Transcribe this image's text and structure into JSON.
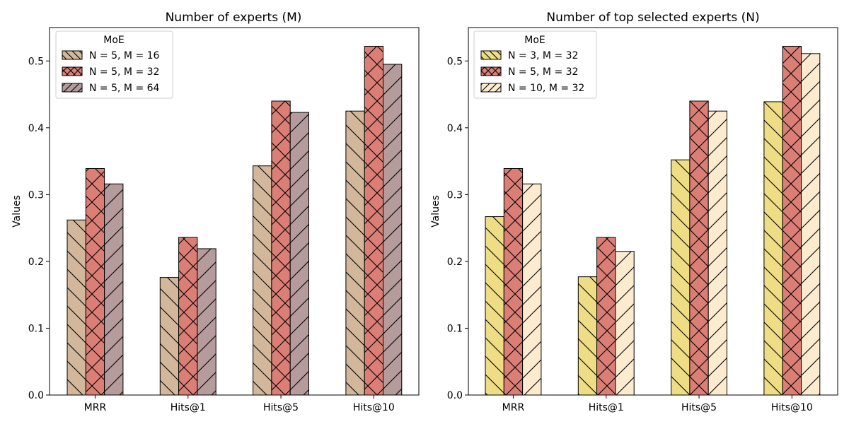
{
  "chart_data": [
    {
      "type": "bar",
      "title": "Number of experts (M)",
      "xlabel": "",
      "ylabel": "Values",
      "categories": [
        "MRR",
        "Hits@1",
        "Hits@5",
        "Hits@10"
      ],
      "ylim": [
        0,
        0.55
      ],
      "yticks": [
        0.0,
        0.1,
        0.2,
        0.3,
        0.4,
        0.5
      ],
      "ytick_labels": [
        "0.0",
        "0.1",
        "0.2",
        "0.3",
        "0.4",
        "0.5"
      ],
      "grid": false,
      "legend": {
        "title": "MoE",
        "placement": "top-left"
      },
      "series": [
        {
          "name": "N = 5, M = 16",
          "color": "#d2b79b",
          "hatch": "backslash",
          "values": [
            0.262,
            0.176,
            0.343,
            0.425
          ]
        },
        {
          "name": "N = 5, M = 32",
          "color": "#db7f76",
          "hatch": "cross",
          "values": [
            0.339,
            0.236,
            0.44,
            0.522
          ]
        },
        {
          "name": "N = 5, M = 64",
          "color": "#b59b9b",
          "hatch": "slash",
          "values": [
            0.316,
            0.219,
            0.423,
            0.495
          ]
        }
      ]
    },
    {
      "type": "bar",
      "title": "Number of top selected experts (N)",
      "xlabel": "",
      "ylabel": "Values",
      "categories": [
        "MRR",
        "Hits@1",
        "Hits@5",
        "Hits@10"
      ],
      "ylim": [
        0,
        0.55
      ],
      "yticks": [
        0.0,
        0.1,
        0.2,
        0.3,
        0.4,
        0.5
      ],
      "ytick_labels": [
        "0.0",
        "0.1",
        "0.2",
        "0.3",
        "0.4",
        "0.5"
      ],
      "grid": false,
      "legend": {
        "title": "MoE",
        "placement": "top-left"
      },
      "series": [
        {
          "name": "N = 3, M = 32",
          "color": "#eedd84",
          "hatch": "backslash",
          "values": [
            0.267,
            0.177,
            0.352,
            0.439
          ]
        },
        {
          "name": "N = 5, M = 32",
          "color": "#db7f76",
          "hatch": "cross",
          "values": [
            0.339,
            0.236,
            0.44,
            0.522
          ]
        },
        {
          "name": "N = 10, M = 32",
          "color": "#fcebcf",
          "hatch": "slash",
          "values": [
            0.316,
            0.215,
            0.425,
            0.511
          ]
        }
      ]
    }
  ]
}
